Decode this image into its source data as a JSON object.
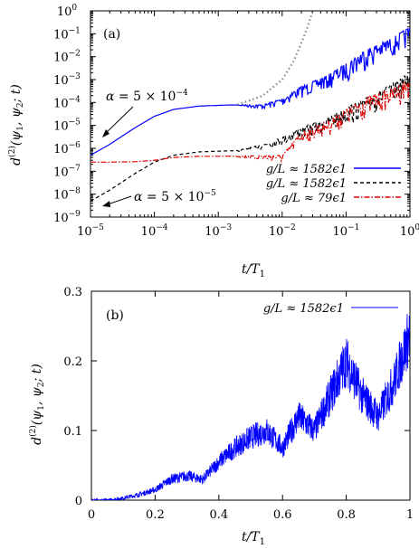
{
  "chart_data": [
    {
      "type": "line",
      "panel_label": "(a)",
      "xlabel": "t/T1",
      "ylabel": "d(2)(ψ1, ψ2; t)",
      "xscale": "log",
      "yscale": "log",
      "xlim": [
        1e-05,
        1
      ],
      "ylim": [
        1e-09,
        1
      ],
      "x_ticks": [
        {
          "base": "10",
          "exp": "−5"
        },
        {
          "base": "10",
          "exp": "−4"
        },
        {
          "base": "10",
          "exp": "−3"
        },
        {
          "base": "10",
          "exp": "−2"
        },
        {
          "base": "10",
          "exp": "−1"
        },
        {
          "base": "10",
          "exp": "0"
        }
      ],
      "y_ticks": [
        {
          "base": "10",
          "exp": "−9"
        },
        {
          "base": "10",
          "exp": "−8"
        },
        {
          "base": "10",
          "exp": "−7"
        },
        {
          "base": "10",
          "exp": "−6"
        },
        {
          "base": "10",
          "exp": "−5"
        },
        {
          "base": "10",
          "exp": "−4"
        },
        {
          "base": "10",
          "exp": "−3"
        },
        {
          "base": "10",
          "exp": "−2"
        },
        {
          "base": "10",
          "exp": "−1"
        },
        {
          "base": "10",
          "exp": "0"
        }
      ],
      "annotations": [
        "α = 5 × 10−4",
        "α = 5 × 10−5"
      ],
      "legend_position": "bottom-right",
      "series": [
        {
          "name": "g/L ≈ 1582ϵ1",
          "color": "#0000ff",
          "style": "solid",
          "x": [
            1e-05,
            2e-05,
            5e-05,
            0.0001,
            0.0002,
            0.0005,
            0.001,
            0.002,
            0.005,
            0.01,
            0.02,
            0.05,
            0.1,
            0.2,
            0.5,
            1
          ],
          "y": [
            5e-07,
            1.5e-06,
            8e-06,
            2.5e-05,
            5e-05,
            7e-05,
            7.5e-05,
            8e-05,
            8e-05,
            0.00015,
            0.0005,
            0.0015,
            0.005,
            0.02,
            0.06,
            0.2
          ]
        },
        {
          "name": "g/L ≈ 1582ϵ1",
          "color": "#000000",
          "style": "dashed",
          "x": [
            1e-05,
            2e-05,
            5e-05,
            0.0001,
            0.0002,
            0.0005,
            0.001,
            0.002,
            0.005,
            0.01,
            0.02,
            0.05,
            0.1,
            0.2,
            0.5,
            1
          ],
          "y": [
            5e-09,
            1.5e-08,
            8e-08,
            2.5e-07,
            5e-07,
            7e-07,
            7.5e-07,
            8e-07,
            1.5e-06,
            3e-06,
            8e-06,
            2e-05,
            6e-05,
            0.00015,
            0.0006,
            0.002
          ]
        },
        {
          "name": "g/L ≈ 79ϵ1",
          "color": "#dd0000",
          "style": "dash-dot",
          "x": [
            1e-05,
            2e-05,
            5e-05,
            0.0001,
            0.0002,
            0.0005,
            0.001,
            0.002,
            0.005,
            0.01,
            0.02,
            0.05,
            0.1,
            0.2,
            0.5,
            1
          ],
          "y": [
            2.5e-07,
            2.5e-07,
            2.6e-07,
            3e-07,
            4e-07,
            4.5e-07,
            4.5e-07,
            4.6e-07,
            4.8e-07,
            5e-07,
            5e-06,
            1.5e-05,
            5e-05,
            0.00015,
            0.0004,
            0.001
          ]
        },
        {
          "name": "",
          "color": "#888888",
          "style": "dotted",
          "x": [
            0.002,
            0.005,
            0.01,
            0.015,
            0.02,
            0.025,
            0.03
          ],
          "y": [
            8e-05,
            0.0002,
            0.001,
            0.006,
            0.04,
            0.2,
            1
          ]
        }
      ]
    },
    {
      "type": "line",
      "panel_label": "(b)",
      "xlabel": "t/T1",
      "ylabel": "d(2)(ψ1, ψ2; t)",
      "xlim": [
        0,
        1
      ],
      "ylim": [
        0,
        0.3
      ],
      "x_ticks": [
        "0",
        "0.2",
        "0.4",
        "0.6",
        "0.8",
        "1"
      ],
      "y_ticks": [
        "0",
        "0.1",
        "0.2",
        "0.3"
      ],
      "legend_position": "top-right",
      "series": [
        {
          "name": "g/L ≈ 1582ϵ1",
          "color": "#0000ff",
          "style": "solid",
          "x": [
            0,
            0.05,
            0.1,
            0.15,
            0.2,
            0.25,
            0.3,
            0.35,
            0.4,
            0.45,
            0.5,
            0.55,
            0.6,
            0.65,
            0.7,
            0.75,
            0.8,
            0.85,
            0.9,
            0.95,
            1
          ],
          "y": [
            0,
            0,
            0.003,
            0.008,
            0.015,
            0.03,
            0.035,
            0.03,
            0.055,
            0.075,
            0.09,
            0.1,
            0.075,
            0.12,
            0.1,
            0.15,
            0.2,
            0.15,
            0.12,
            0.17,
            0.24
          ]
        }
      ]
    }
  ]
}
